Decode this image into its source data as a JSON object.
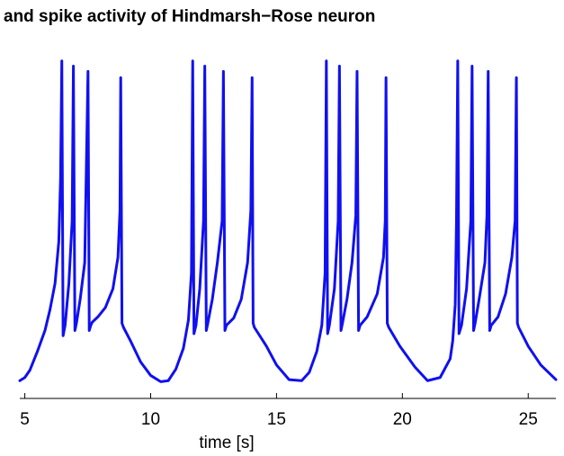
{
  "chart_data": {
    "type": "line",
    "title": "and spike activity of Hindmarsh−Rose neuron",
    "xlabel": "time [s]",
    "ylabel": "",
    "xlim": [
      4.8,
      26.1
    ],
    "ylim": [
      -1.5,
      1.9
    ],
    "xticks": [
      {
        "value": 5,
        "label": "5"
      },
      {
        "value": 10,
        "label": "10"
      },
      {
        "value": 15,
        "label": "15"
      },
      {
        "value": 20,
        "label": "20"
      },
      {
        "value": 25,
        "label": "25"
      }
    ],
    "grid": false,
    "color": "#1010f0",
    "series": [
      {
        "x": [
          4.8,
          5.0,
          5.2,
          5.5,
          5.8,
          6.0,
          6.2,
          6.35,
          6.42,
          6.47,
          6.52,
          6.6,
          6.75,
          6.88,
          6.93,
          6.99,
          7.05,
          7.2,
          7.38,
          7.51,
          7.56,
          7.62,
          7.68,
          7.9,
          8.2,
          8.5,
          8.7,
          8.78,
          8.81,
          8.86,
          8.92,
          9.2,
          9.6,
          10.0,
          10.4,
          10.7,
          11.0,
          11.3,
          11.5,
          11.62,
          11.67,
          11.72,
          11.8,
          11.95,
          12.1,
          12.15,
          12.21,
          12.27,
          12.45,
          12.65,
          12.84,
          12.89,
          12.95,
          13.01,
          13.3,
          13.6,
          13.85,
          13.98,
          14.03,
          14.07,
          14.12,
          14.6,
          15.0,
          15.5,
          16.0,
          16.3,
          16.6,
          16.8,
          16.93,
          16.98,
          17.03,
          17.1,
          17.3,
          17.45,
          17.5,
          17.56,
          17.62,
          17.8,
          18.0,
          18.15,
          18.2,
          18.26,
          18.32,
          18.6,
          19.0,
          19.25,
          19.32,
          19.35,
          19.4,
          19.46,
          19.9,
          20.5,
          21.0,
          21.5,
          21.9,
          22.0,
          22.1,
          22.15,
          22.2,
          22.25,
          22.35,
          22.55,
          22.72,
          22.77,
          22.83,
          22.89,
          23.05,
          23.28,
          23.36,
          23.41,
          23.47,
          23.53,
          23.8,
          24.1,
          24.35,
          24.48,
          24.53,
          24.57,
          24.62,
          25.0,
          25.5,
          26.1
        ],
        "y": [
          -1.33,
          -1.3,
          -1.23,
          -1.05,
          -0.85,
          -0.65,
          -0.4,
          0.0,
          0.6,
          1.73,
          -0.9,
          -0.8,
          -0.4,
          0.2,
          1.68,
          -0.85,
          -0.78,
          -0.55,
          -0.2,
          1.63,
          -0.85,
          -0.8,
          -0.77,
          -0.72,
          -0.63,
          -0.45,
          -0.15,
          0.3,
          1.57,
          -0.78,
          -0.82,
          -0.95,
          -1.15,
          -1.28,
          -1.34,
          -1.33,
          -1.22,
          -1.02,
          -0.75,
          -0.3,
          1.73,
          -0.88,
          -0.8,
          -0.45,
          0.2,
          1.68,
          -0.85,
          -0.78,
          -0.55,
          -0.2,
          0.2,
          1.63,
          -0.85,
          -0.8,
          -0.73,
          -0.55,
          -0.2,
          0.3,
          1.57,
          -0.78,
          -0.82,
          -1.0,
          -1.18,
          -1.32,
          -1.33,
          -1.25,
          -1.05,
          -0.8,
          -0.3,
          1.73,
          -0.88,
          -0.8,
          -0.45,
          0.2,
          1.68,
          -0.85,
          -0.78,
          -0.55,
          -0.2,
          0.25,
          1.63,
          -0.85,
          -0.8,
          -0.72,
          -0.5,
          -0.15,
          0.2,
          1.57,
          -0.78,
          -0.82,
          -1.0,
          -1.2,
          -1.33,
          -1.3,
          -1.12,
          -0.95,
          -0.6,
          0.2,
          1.73,
          -0.88,
          -0.8,
          -0.45,
          0.2,
          1.68,
          -0.85,
          -0.78,
          -0.55,
          -0.2,
          0.25,
          1.63,
          -0.85,
          -0.8,
          -0.72,
          -0.5,
          -0.15,
          0.2,
          1.57,
          -0.78,
          -0.82,
          -1.0,
          -1.18,
          -1.32
        ]
      }
    ]
  }
}
